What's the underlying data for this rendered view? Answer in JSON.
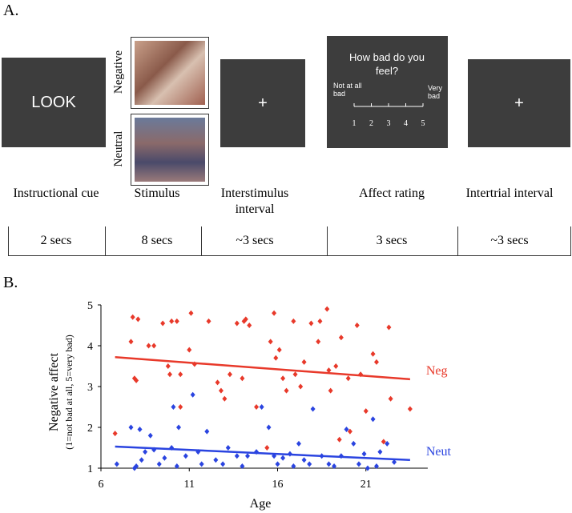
{
  "panel_a": {
    "label": "A.",
    "cue": "LOOK",
    "stimulus_labels": [
      "Negative",
      "Neutral"
    ],
    "isi": "+",
    "rating": {
      "question": "How bad do you feel?",
      "low": "Not at all bad",
      "high": "Very bad",
      "scale": [
        1,
        2,
        3,
        4,
        5
      ]
    },
    "iti": "+",
    "steps": [
      {
        "caption": "Instructional cue",
        "duration": "2 secs"
      },
      {
        "caption": "Stimulus",
        "duration": "8 secs"
      },
      {
        "caption": "Interstimulus interval",
        "duration": "~3 secs"
      },
      {
        "caption": "Affect rating",
        "duration": "3 secs"
      },
      {
        "caption": "Intertrial interval",
        "duration": "~3 secs"
      }
    ]
  },
  "panel_b_label": "B.",
  "chart_data": {
    "type": "scatter",
    "x_label": "Age",
    "y_label": "Negative affect",
    "y_sublabel": "(1=not bad at all, 5=very bad)",
    "xlim": [
      6,
      24.5
    ],
    "ylim": [
      1,
      5
    ],
    "xticks": [
      6,
      11,
      16,
      21
    ],
    "yticks": [
      1,
      2,
      3,
      4,
      5
    ],
    "series": [
      {
        "name": "Neg",
        "color": "#e8392a",
        "x": [
          6.8,
          7.8,
          8.1,
          7.7,
          7.9,
          8.0,
          8.7,
          9.0,
          9.5,
          9.8,
          10.0,
          10.3,
          9.9,
          10.5,
          10.5,
          11.1,
          11.0,
          11.3,
          12.1,
          12.6,
          12.8,
          13.0,
          13.3,
          13.7,
          14.1,
          14.2,
          14.4,
          14.0,
          14.8,
          15.8,
          15.6,
          15.9,
          16.3,
          16.5,
          16.9,
          17.3,
          17.5,
          17.9,
          18.4,
          18.8,
          18.9,
          19.3,
          19.0,
          19.6,
          20.0,
          20.5,
          20.7,
          21.0,
          21.4,
          21.6,
          22.3,
          22.4,
          22.0,
          23.5,
          20.1,
          15.4,
          19.5,
          18.3,
          16.1,
          17.0
        ],
        "values": [
          1.85,
          4.7,
          4.65,
          4.1,
          3.2,
          3.15,
          4.0,
          4.0,
          4.55,
          3.5,
          4.6,
          4.6,
          3.3,
          3.3,
          2.5,
          4.8,
          3.9,
          3.55,
          4.6,
          3.1,
          2.9,
          2.7,
          3.3,
          4.55,
          4.6,
          4.65,
          4.5,
          3.2,
          2.5,
          4.8,
          4.1,
          3.7,
          3.2,
          2.9,
          4.6,
          3.0,
          3.6,
          4.55,
          4.6,
          4.9,
          3.4,
          3.5,
          2.9,
          4.2,
          3.2,
          4.5,
          3.3,
          2.4,
          3.8,
          3.6,
          4.45,
          2.7,
          1.65,
          2.45,
          1.9,
          1.5,
          1.7,
          4.1,
          3.9,
          3.3
        ],
        "trend_x": [
          6.8,
          23.5
        ],
        "trend_y": [
          3.72,
          3.18
        ]
      },
      {
        "name": "Neut",
        "color": "#2a44e0",
        "x": [
          6.9,
          7.7,
          8.2,
          8.5,
          8.0,
          8.3,
          8.8,
          9.0,
          9.3,
          9.6,
          10.0,
          10.1,
          10.4,
          10.3,
          10.8,
          11.2,
          11.5,
          11.7,
          12.0,
          12.5,
          12.9,
          13.2,
          13.7,
          14.0,
          14.3,
          14.8,
          15.1,
          15.5,
          15.8,
          16.0,
          16.3,
          16.7,
          16.9,
          17.2,
          17.5,
          17.8,
          18.0,
          18.5,
          18.9,
          19.2,
          19.6,
          19.9,
          20.3,
          20.6,
          20.9,
          21.1,
          21.4,
          21.8,
          22.2,
          22.6,
          21.6,
          7.9
        ],
        "values": [
          1.1,
          2.0,
          1.95,
          1.4,
          1.05,
          1.2,
          1.8,
          1.45,
          1.1,
          1.25,
          1.5,
          2.5,
          2.0,
          1.05,
          1.3,
          2.8,
          1.4,
          1.1,
          1.9,
          1.2,
          1.1,
          1.5,
          1.3,
          1.05,
          1.3,
          1.4,
          2.5,
          2.0,
          1.3,
          1.1,
          1.25,
          1.35,
          1.05,
          1.6,
          1.2,
          1.1,
          2.45,
          1.3,
          1.1,
          1.05,
          1.3,
          1.95,
          1.6,
          1.1,
          1.35,
          1.0,
          2.2,
          1.4,
          1.6,
          1.15,
          1.05,
          1.0
        ],
        "trend_x": [
          6.8,
          23.5
        ],
        "trend_y": [
          1.53,
          1.2
        ]
      }
    ]
  }
}
